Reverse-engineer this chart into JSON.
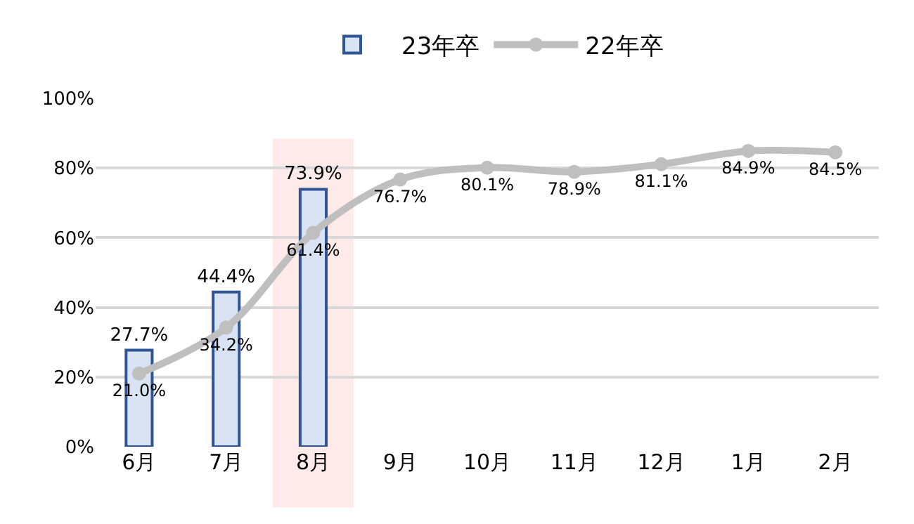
{
  "chart_data": {
    "type": "bar",
    "categories": [
      "6月",
      "7月",
      "8月",
      "9月",
      "10月",
      "11月",
      "12月",
      "1月",
      "2月"
    ],
    "series": [
      {
        "name": "23年卒",
        "color": "#dae3f3",
        "values": [
          27.7,
          44.4,
          73.9,
          null,
          null,
          null,
          null,
          null,
          null
        ],
        "value_labels": [
          "27.7%",
          "44.4%",
          "73.9%",
          null,
          null,
          null,
          null,
          null,
          null
        ]
      },
      {
        "name": "22年卒",
        "type": "line",
        "color": "#bfbfbf",
        "marker": "circle",
        "values": [
          21.0,
          34.2,
          61.4,
          76.7,
          80.1,
          78.9,
          81.1,
          84.9,
          84.5
        ],
        "value_labels": [
          "21.0%",
          "34.2%",
          "61.4%",
          "76.7%",
          "80.1%",
          "78.9%",
          "81.1%",
          "84.9%",
          "84.5%"
        ]
      }
    ],
    "ylim": [
      0,
      100
    ],
    "yticks": [
      {
        "value": 0,
        "label": "0%"
      },
      {
        "value": 20,
        "label": "20%"
      },
      {
        "value": 40,
        "label": "40%"
      },
      {
        "value": 60,
        "label": "60%"
      },
      {
        "value": 80,
        "label": "80%"
      },
      {
        "value": 100,
        "label": "100%"
      }
    ],
    "grid": "y",
    "legend": "top",
    "bands": [
      {
        "axis": "x",
        "from": "8月",
        "to": "8月",
        "color": "#ff0000"
      }
    ]
  }
}
